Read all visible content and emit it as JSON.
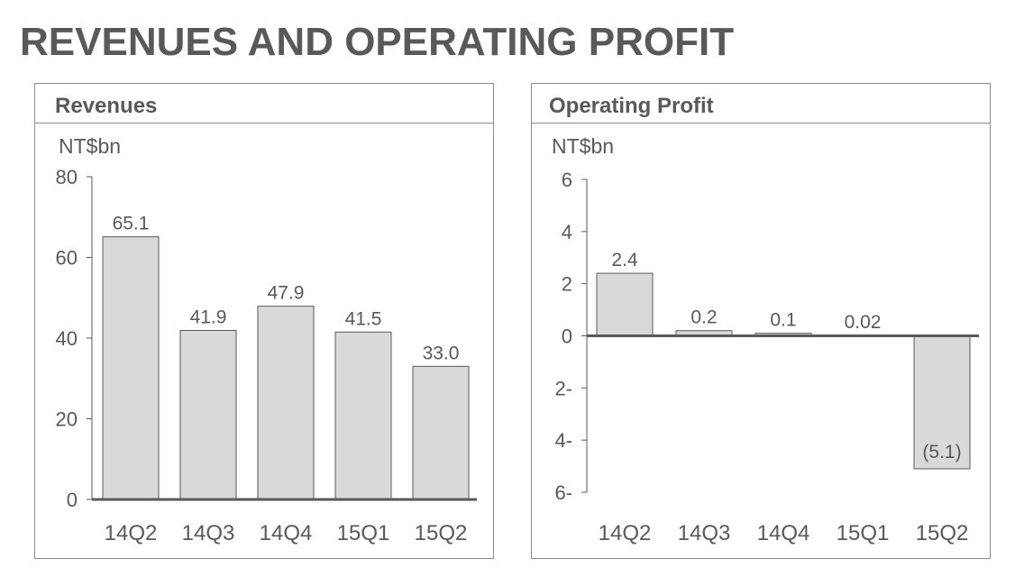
{
  "page_title": "REVENUES AND OPERATING PROFIT",
  "chart_data": [
    {
      "type": "bar",
      "title": "Revenues",
      "ylabel": "NT$bn",
      "xlabel": "",
      "categories": [
        "14Q2",
        "14Q3",
        "14Q4",
        "15Q1",
        "15Q2"
      ],
      "values": [
        65.1,
        41.9,
        47.9,
        41.5,
        33.0
      ],
      "value_labels": [
        "65.1",
        "41.9",
        "47.9",
        "41.5",
        "33.0"
      ],
      "yticks": [
        0,
        20,
        40,
        60,
        80
      ],
      "ytick_labels": [
        "0",
        "20",
        "40",
        "60",
        "80"
      ],
      "ylim": [
        0,
        80
      ],
      "grid": false
    },
    {
      "type": "bar",
      "title": "Operating Profit",
      "ylabel": "NT$bn",
      "xlabel": "",
      "categories": [
        "14Q2",
        "14Q3",
        "14Q4",
        "15Q1",
        "15Q2"
      ],
      "values": [
        2.4,
        0.2,
        0.1,
        0.02,
        -5.1
      ],
      "value_labels": [
        "2.4",
        "0.2",
        "0.1",
        "0.02",
        "(5.1)"
      ],
      "yticks": [
        6,
        4,
        2,
        0,
        -2,
        -4,
        -6
      ],
      "ytick_labels": [
        "6",
        "4",
        "2",
        "0",
        "2-",
        "4-",
        "6-"
      ],
      "ylim": [
        -6,
        6
      ],
      "grid": false
    }
  ],
  "colors": {
    "bar_fill": "#d9d9d9",
    "bar_stroke": "#595959",
    "axis": "#595959",
    "text": "#595959"
  }
}
